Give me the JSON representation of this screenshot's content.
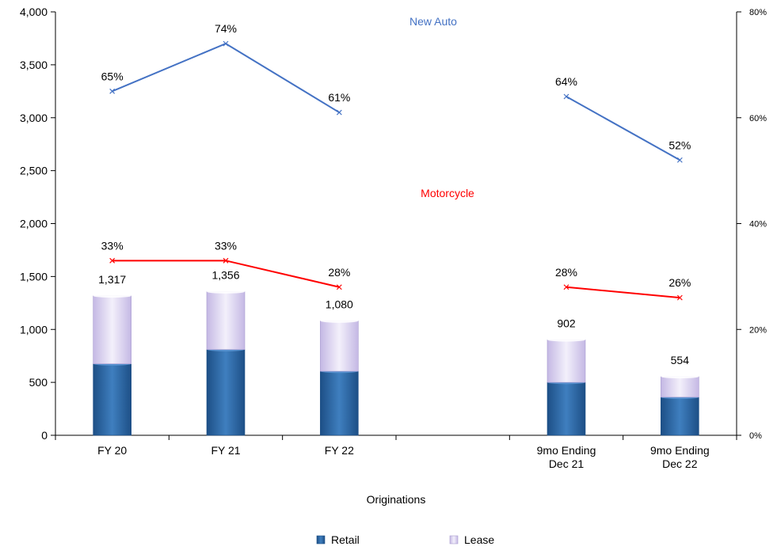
{
  "chart_data": {
    "type": "bar",
    "stacked": true,
    "categories": [
      [
        "FY 20"
      ],
      [
        "FY 21"
      ],
      [
        "FY 22"
      ],
      [],
      [
        "9mo Ending",
        "Dec 21"
      ],
      [
        "9mo Ending",
        "Dec 22"
      ]
    ],
    "xlabel": "Originations",
    "ylim": [
      0,
      4000
    ],
    "yticks": [
      "0",
      "500",
      "1,000",
      "1,500",
      "2,000",
      "2,500",
      "3,000",
      "3,500",
      "4,000"
    ],
    "ytick_values": [
      0,
      500,
      1000,
      1500,
      2000,
      2500,
      3000,
      3500,
      4000
    ],
    "y2lim": [
      0,
      80
    ],
    "y2ticks": [
      "0%",
      "20%",
      "40%",
      "60%",
      "80%"
    ],
    "y2tick_values": [
      0,
      20,
      40,
      60,
      80
    ],
    "series": [
      {
        "name": "Retail",
        "values": [
          675,
          810,
          605,
          null,
          500,
          360
        ],
        "color": "#2e6aa6"
      },
      {
        "name": "Lease",
        "values": [
          642,
          546,
          475,
          null,
          402,
          194
        ],
        "color": "#d9d2ee"
      }
    ],
    "totals": [
      1317,
      1356,
      1080,
      null,
      902,
      554
    ],
    "total_labels": [
      "1,317",
      "1,356",
      "1,080",
      "",
      "902",
      "554"
    ],
    "lines": [
      {
        "name": "New Auto",
        "axis": "right",
        "color": "#4472c4",
        "values": [
          65,
          74,
          61,
          null,
          64,
          52
        ],
        "labels": [
          "65%",
          "74%",
          "61%",
          "",
          "64%",
          "52%"
        ]
      },
      {
        "name": "Motorcycle",
        "axis": "right",
        "color": "#ff0000",
        "values": [
          33,
          33,
          28,
          null,
          28,
          26
        ],
        "labels": [
          "33%",
          "33%",
          "28%",
          "",
          "28%",
          "26%"
        ]
      }
    ],
    "legend": [
      "Retail",
      "Lease"
    ],
    "legend_position": "bottom",
    "grid": false
  }
}
